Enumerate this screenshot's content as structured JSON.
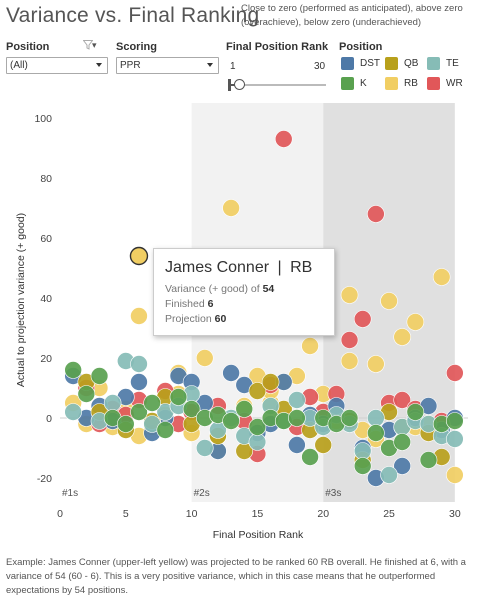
{
  "title": "Variance vs. Final Ranking",
  "subtitle": "Close to zero (performed as anticipated), above zero (overachieve), below zero (underachieved)",
  "filters": {
    "position": {
      "label": "Position",
      "value": "(All)",
      "icon": "funnel-icon"
    },
    "scoring": {
      "label": "Scoring",
      "value": "PPR"
    },
    "rank": {
      "label": "Final Position Rank",
      "min": "1",
      "max": "30"
    }
  },
  "legend": {
    "title": "Position",
    "items": [
      {
        "label": "DST",
        "color": "#4e79a7"
      },
      {
        "label": "QB",
        "color": "#b8a01b"
      },
      {
        "label": "TE",
        "color": "#86bcb6"
      },
      {
        "label": "K",
        "color": "#59a14f"
      },
      {
        "label": "RB",
        "color": "#f1ce63"
      },
      {
        "label": "WR",
        "color": "#e15759"
      }
    ]
  },
  "tooltip": {
    "name": "James Conner",
    "sep": "|",
    "pos": "RB",
    "variance_label": "Variance (+ good) of",
    "variance": "54",
    "finished_label": "Finished",
    "finished": "6",
    "projection_label": "Projection",
    "projection": "60"
  },
  "footer": "Example: James Conner (upper-left yellow) was projected to be ranked 60 RB overall.  He finished at 6, with a variance of 54 (60 - 6).  This is a very positive variance, which in this case means that he outperformed expectations by 54 positions.",
  "chart_data": {
    "type": "scatter",
    "xlabel": "Final Position Rank",
    "ylabel": "Actual to projection variance (+ good)",
    "xlim": [
      0,
      31
    ],
    "ylim": [
      -28,
      105
    ],
    "xticks": [
      0,
      5,
      10,
      15,
      20,
      25,
      30
    ],
    "yticks": [
      -20,
      0,
      20,
      40,
      60,
      80,
      100
    ],
    "bands": [
      {
        "label": "#1s",
        "from": 0,
        "to": 10,
        "color": "#ffffff"
      },
      {
        "label": "#2s",
        "from": 10,
        "to": 20,
        "color": "#f2f2f2"
      },
      {
        "label": "#3s",
        "from": 20,
        "to": 30,
        "color": "#e0e0e0"
      }
    ],
    "highlight": {
      "series": "RB",
      "x": 6,
      "y": 54
    },
    "series": [
      {
        "name": "RB",
        "color": "#f1ce63",
        "points": [
          [
            1,
            5
          ],
          [
            2,
            -2
          ],
          [
            3,
            10
          ],
          [
            4,
            -3
          ],
          [
            5,
            3
          ],
          [
            6,
            54
          ],
          [
            6,
            34
          ],
          [
            7,
            -3
          ],
          [
            8,
            1
          ],
          [
            9,
            15
          ],
          [
            10,
            -5
          ],
          [
            11,
            20
          ],
          [
            12,
            -6
          ],
          [
            13,
            70
          ],
          [
            14,
            4
          ],
          [
            15,
            14
          ],
          [
            16,
            5
          ],
          [
            17,
            12
          ],
          [
            18,
            14
          ],
          [
            19,
            24
          ],
          [
            20,
            8
          ],
          [
            21,
            -1
          ],
          [
            22,
            19
          ],
          [
            22,
            41
          ],
          [
            23,
            -4
          ],
          [
            24,
            18
          ],
          [
            25,
            39
          ],
          [
            26,
            27
          ],
          [
            27,
            32
          ],
          [
            28,
            -2
          ],
          [
            29,
            47
          ],
          [
            30,
            -19
          ],
          [
            6,
            -6
          ],
          [
            9,
            8
          ],
          [
            12,
            -11
          ],
          [
            16,
            9
          ],
          [
            24,
            -7
          ],
          [
            27,
            -3
          ]
        ]
      },
      {
        "name": "WR",
        "color": "#e15759",
        "points": [
          [
            2,
            10
          ],
          [
            3,
            -2
          ],
          [
            4,
            3
          ],
          [
            5,
            1
          ],
          [
            6,
            6
          ],
          [
            8,
            9
          ],
          [
            9,
            -2
          ],
          [
            10,
            2
          ],
          [
            12,
            4
          ],
          [
            14,
            -1
          ],
          [
            15,
            -12
          ],
          [
            16,
            11
          ],
          [
            17,
            93
          ],
          [
            18,
            -3
          ],
          [
            19,
            7
          ],
          [
            20,
            2
          ],
          [
            21,
            8
          ],
          [
            22,
            26
          ],
          [
            23,
            33
          ],
          [
            24,
            68
          ],
          [
            25,
            5
          ],
          [
            26,
            6
          ],
          [
            27,
            3
          ],
          [
            29,
            -1
          ],
          [
            30,
            15
          ]
        ]
      },
      {
        "name": "DST",
        "color": "#4e79a7",
        "points": [
          [
            1,
            14
          ],
          [
            2,
            0
          ],
          [
            3,
            4
          ],
          [
            4,
            -1
          ],
          [
            5,
            7
          ],
          [
            6,
            12
          ],
          [
            7,
            -5
          ],
          [
            8,
            0
          ],
          [
            9,
            14
          ],
          [
            10,
            12
          ],
          [
            11,
            5
          ],
          [
            12,
            -11
          ],
          [
            13,
            15
          ],
          [
            14,
            11
          ],
          [
            15,
            -5
          ],
          [
            16,
            -2
          ],
          [
            17,
            12
          ],
          [
            18,
            -9
          ],
          [
            19,
            1
          ],
          [
            20,
            -2
          ],
          [
            21,
            4
          ],
          [
            22,
            -1
          ],
          [
            23,
            -10
          ],
          [
            24,
            -20
          ],
          [
            25,
            -4
          ],
          [
            26,
            -16
          ],
          [
            27,
            0
          ],
          [
            28,
            4
          ],
          [
            29,
            -4
          ],
          [
            30,
            0
          ]
        ]
      },
      {
        "name": "QB",
        "color": "#b8a01b",
        "points": [
          [
            2,
            12
          ],
          [
            3,
            2
          ],
          [
            5,
            -4
          ],
          [
            7,
            -1
          ],
          [
            8,
            7
          ],
          [
            10,
            -2
          ],
          [
            12,
            -6
          ],
          [
            14,
            -11
          ],
          [
            15,
            9
          ],
          [
            16,
            12
          ],
          [
            17,
            3
          ],
          [
            19,
            -4
          ],
          [
            20,
            -9
          ],
          [
            22,
            -1
          ],
          [
            23,
            -14
          ],
          [
            25,
            2
          ],
          [
            26,
            -3
          ],
          [
            28,
            -5
          ],
          [
            29,
            -13
          ]
        ]
      },
      {
        "name": "TE",
        "color": "#86bcb6",
        "points": [
          [
            1,
            2
          ],
          [
            3,
            -1
          ],
          [
            4,
            5
          ],
          [
            5,
            19
          ],
          [
            6,
            18
          ],
          [
            7,
            -2
          ],
          [
            8,
            2
          ],
          [
            9,
            4
          ],
          [
            10,
            8
          ],
          [
            11,
            -10
          ],
          [
            12,
            -4
          ],
          [
            13,
            0
          ],
          [
            14,
            -6
          ],
          [
            15,
            -8
          ],
          [
            16,
            4
          ],
          [
            17,
            -1
          ],
          [
            18,
            6
          ],
          [
            19,
            0
          ],
          [
            20,
            -3
          ],
          [
            21,
            1
          ],
          [
            22,
            -2
          ],
          [
            23,
            -11
          ],
          [
            24,
            0
          ],
          [
            25,
            -19
          ],
          [
            26,
            -3
          ],
          [
            27,
            -1
          ],
          [
            28,
            -2
          ],
          [
            29,
            -6
          ],
          [
            30,
            -7
          ]
        ]
      },
      {
        "name": "K",
        "color": "#59a14f",
        "points": [
          [
            1,
            16
          ],
          [
            2,
            8
          ],
          [
            3,
            14
          ],
          [
            4,
            0
          ],
          [
            5,
            -2
          ],
          [
            6,
            2
          ],
          [
            7,
            5
          ],
          [
            8,
            -4
          ],
          [
            9,
            7
          ],
          [
            10,
            3
          ],
          [
            11,
            0
          ],
          [
            12,
            1
          ],
          [
            13,
            -1
          ],
          [
            14,
            3
          ],
          [
            15,
            -3
          ],
          [
            16,
            0
          ],
          [
            17,
            -1
          ],
          [
            18,
            0
          ],
          [
            19,
            -13
          ],
          [
            20,
            0
          ],
          [
            21,
            -2
          ],
          [
            22,
            0
          ],
          [
            23,
            -16
          ],
          [
            24,
            -5
          ],
          [
            25,
            -10
          ],
          [
            26,
            -8
          ],
          [
            27,
            2
          ],
          [
            28,
            -14
          ],
          [
            29,
            -2
          ],
          [
            30,
            -1
          ]
        ]
      }
    ]
  }
}
